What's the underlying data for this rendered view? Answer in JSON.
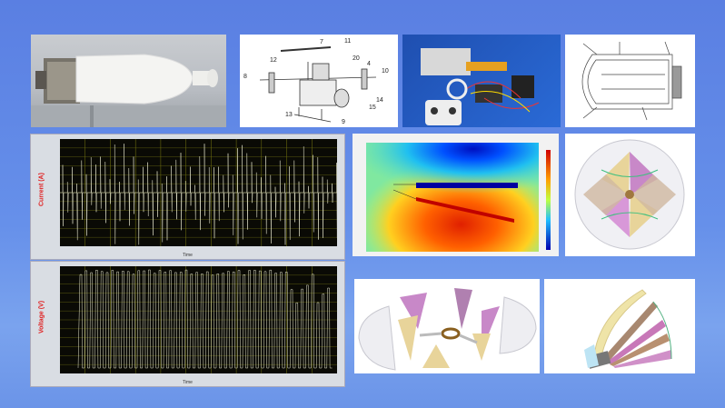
{
  "drone_drawing": {
    "labels": [
      "7",
      "11",
      "12",
      "20",
      "4",
      "10",
      "8",
      "14",
      "15",
      "13",
      "9"
    ]
  },
  "current_chart": {
    "ylabel": "Current (A)",
    "xlabel": "Time",
    "colors": {
      "background": "#0a0a05",
      "trace": "#e8e8d0",
      "grid": "#7a7a10"
    }
  },
  "voltage_chart": {
    "ylabel": "Voltage (V)",
    "xlabel": "Time"
  },
  "colors": {
    "background": "#6690ea"
  }
}
